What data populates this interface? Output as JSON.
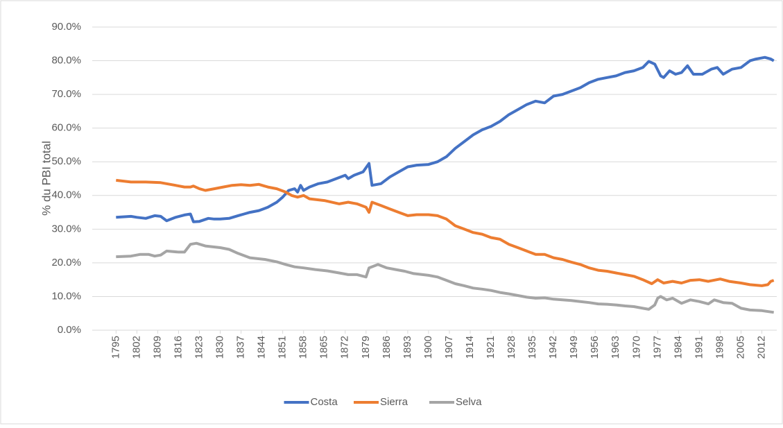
{
  "chart_data": {
    "type": "line",
    "y_label": "% du PBI total",
    "xlim": [
      1787,
      2017
    ],
    "xticks": [
      1795,
      1802,
      1809,
      1816,
      1823,
      1830,
      1837,
      1844,
      1851,
      1858,
      1865,
      1872,
      1879,
      1886,
      1893,
      1900,
      1907,
      1914,
      1921,
      1928,
      1935,
      1942,
      1949,
      1956,
      1963,
      1970,
      1977,
      1984,
      1991,
      1998,
      2005,
      2012
    ],
    "ylim": [
      0,
      90
    ],
    "yticks": [
      {
        "value": 0,
        "label": "0.0%"
      },
      {
        "value": 10,
        "label": "10.0%"
      },
      {
        "value": 20,
        "label": "20.0%"
      },
      {
        "value": 30,
        "label": "30.0%"
      },
      {
        "value": 40,
        "label": "40.0%"
      },
      {
        "value": 50,
        "label": "50.0%"
      },
      {
        "value": 60,
        "label": "60.0%"
      },
      {
        "value": 70,
        "label": "70.0%"
      },
      {
        "value": 80,
        "label": "80.0%"
      },
      {
        "value": 90,
        "label": "90.0%"
      }
    ],
    "grid": true,
    "legend": "bottom",
    "series": [
      {
        "name": "Costa",
        "color": "#4472c4",
        "x": [
          1795,
          1800,
          1802,
          1805,
          1808,
          1810,
          1812,
          1815,
          1818,
          1820,
          1821,
          1823,
          1826,
          1828,
          1830,
          1833,
          1836,
          1838,
          1840,
          1843,
          1846,
          1849,
          1851,
          1853,
          1855,
          1856,
          1857,
          1858,
          1860,
          1863,
          1866,
          1869,
          1872,
          1873,
          1875,
          1878,
          1880,
          1881,
          1884,
          1887,
          1890,
          1893,
          1896,
          1900,
          1903,
          1906,
          1909,
          1912,
          1915,
          1918,
          1921,
          1924,
          1927,
          1930,
          1933,
          1936,
          1939,
          1942,
          1945,
          1948,
          1951,
          1954,
          1957,
          1960,
          1963,
          1966,
          1969,
          1972,
          1974,
          1976,
          1978,
          1979,
          1981,
          1983,
          1985,
          1987,
          1989,
          1992,
          1995,
          1997,
          1999,
          2002,
          2005,
          2008,
          2010,
          2013,
          2015,
          2016
        ],
        "values": [
          33.5,
          33.8,
          33.5,
          33.2,
          34,
          33.8,
          32.5,
          33.5,
          34.2,
          34.5,
          32.2,
          32.3,
          33.2,
          33,
          33,
          33.2,
          34,
          34.5,
          35,
          35.5,
          36.5,
          38,
          39.5,
          41.5,
          42,
          41,
          43,
          41.5,
          42.5,
          43.5,
          44,
          45,
          46,
          45,
          46,
          47,
          49.5,
          43,
          43.5,
          45.5,
          47,
          48.5,
          49,
          49.2,
          50,
          51.5,
          54,
          56,
          58,
          59.5,
          60.5,
          62,
          64,
          65.5,
          67,
          68,
          67.5,
          69.5,
          70,
          71,
          72,
          73.5,
          74.5,
          75,
          75.5,
          76.5,
          77,
          78,
          79.8,
          79,
          75.5,
          75,
          77,
          76,
          76.5,
          78.5,
          76,
          76,
          77.5,
          78,
          76,
          77.5,
          78,
          80,
          80.5,
          81,
          80.5,
          80
        ]
      },
      {
        "name": "Sierra",
        "color": "#ed7d31",
        "x": [
          1795,
          1800,
          1805,
          1810,
          1815,
          1818,
          1820,
          1821,
          1823,
          1825,
          1828,
          1831,
          1834,
          1837,
          1840,
          1843,
          1846,
          1849,
          1852,
          1854,
          1856,
          1858,
          1860,
          1865,
          1870,
          1873,
          1876,
          1879,
          1880,
          1881,
          1884,
          1887,
          1890,
          1893,
          1896,
          1900,
          1903,
          1906,
          1909,
          1912,
          1915,
          1918,
          1921,
          1924,
          1927,
          1930,
          1933,
          1936,
          1939,
          1942,
          1945,
          1948,
          1951,
          1954,
          1957,
          1960,
          1963,
          1966,
          1969,
          1972,
          1975,
          1977,
          1979,
          1982,
          1985,
          1988,
          1991,
          1994,
          1998,
          2001,
          2005,
          2008,
          2012,
          2014,
          2015,
          2016
        ],
        "values": [
          44.5,
          44,
          44,
          43.8,
          43,
          42.5,
          42.5,
          42.8,
          42,
          41.5,
          42,
          42.5,
          43,
          43.2,
          43,
          43.3,
          42.5,
          42,
          41,
          40,
          39.5,
          40,
          39,
          38.5,
          37.5,
          38,
          37.5,
          36.5,
          35,
          38,
          37,
          36,
          35,
          34,
          34.3,
          34.3,
          34,
          33,
          31,
          30,
          29,
          28.5,
          27.5,
          27,
          25.5,
          24.5,
          23.5,
          22.5,
          22.5,
          21.5,
          21,
          20.2,
          19.5,
          18.5,
          17.8,
          17.5,
          17,
          16.5,
          16,
          15,
          13.8,
          15,
          14,
          14.5,
          14,
          14.8,
          15,
          14.5,
          15.2,
          14.5,
          14,
          13.5,
          13.2,
          13.5,
          14.5,
          14.8
        ]
      },
      {
        "name": "Selva",
        "color": "#a5a5a5",
        "x": [
          1795,
          1800,
          1803,
          1806,
          1808,
          1810,
          1812,
          1816,
          1818,
          1820,
          1822,
          1825,
          1830,
          1833,
          1836,
          1840,
          1845,
          1849,
          1852,
          1855,
          1858,
          1862,
          1866,
          1870,
          1873,
          1876,
          1879,
          1880,
          1883,
          1886,
          1889,
          1892,
          1895,
          1900,
          1903,
          1906,
          1909,
          1912,
          1915,
          1918,
          1921,
          1924,
          1927,
          1930,
          1933,
          1936,
          1939,
          1942,
          1945,
          1948,
          1951,
          1954,
          1957,
          1960,
          1963,
          1966,
          1969,
          1972,
          1974,
          1976,
          1977,
          1978,
          1980,
          1982,
          1985,
          1988,
          1991,
          1994,
          1996,
          1999,
          2002,
          2005,
          2008,
          2012,
          2016
        ],
        "values": [
          21.8,
          22,
          22.5,
          22.5,
          22,
          22.3,
          23.5,
          23.2,
          23.2,
          25.5,
          25.8,
          25,
          24.5,
          24,
          22.8,
          21.5,
          21,
          20.3,
          19.5,
          18.8,
          18.5,
          18,
          17.6,
          17,
          16.5,
          16.5,
          15.8,
          18.5,
          19.5,
          18.5,
          18,
          17.5,
          16.8,
          16.3,
          15.8,
          14.8,
          13.8,
          13.2,
          12.5,
          12.2,
          11.8,
          11.2,
          10.8,
          10.3,
          9.8,
          9.5,
          9.6,
          9.2,
          9,
          8.8,
          8.5,
          8.2,
          7.8,
          7.7,
          7.5,
          7.2,
          7,
          6.5,
          6.2,
          7.5,
          9.5,
          10,
          9,
          9.5,
          8,
          9,
          8.5,
          7.8,
          9,
          8.2,
          8,
          6.5,
          6,
          5.8,
          5.3
        ]
      }
    ]
  }
}
